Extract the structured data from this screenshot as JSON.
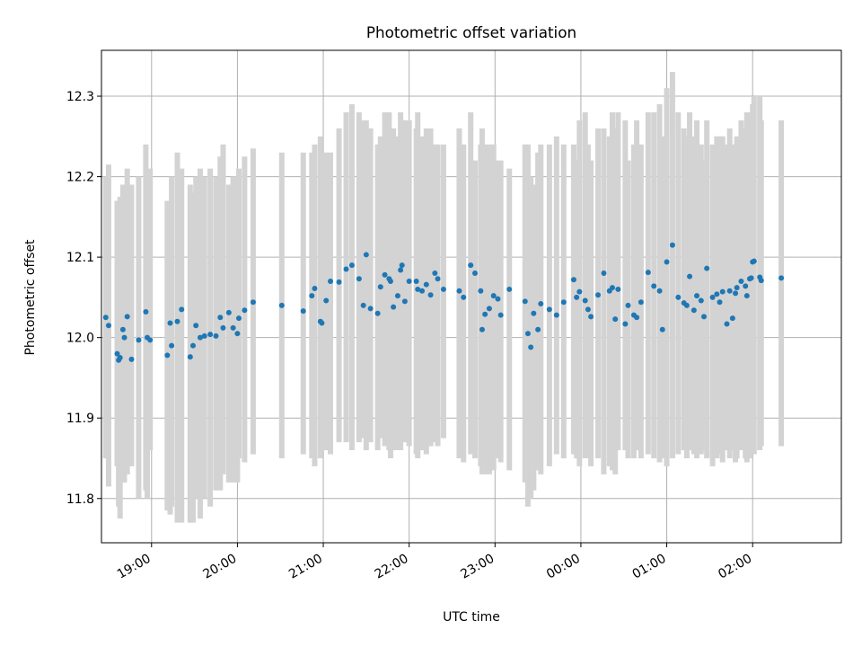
{
  "chart_data": {
    "type": "scatter",
    "title": "Photometric offset variation",
    "xlabel": "UTC time",
    "ylabel": "Photometric offset",
    "x_ticks": [
      "19:00",
      "20:00",
      "21:00",
      "22:00",
      "23:00",
      "00:00",
      "01:00",
      "02:00"
    ],
    "y_ticks": [
      "11.8",
      "11.9",
      "12.0",
      "12.1",
      "12.2",
      "12.3"
    ],
    "xlim": [
      "18:25",
      "03:02"
    ],
    "ylim": [
      11.745,
      12.357
    ],
    "grid": true,
    "colors": {
      "points": "#1f77b4",
      "errorbars": "#d3d3d3",
      "grid": "#b0b0b0"
    },
    "series": [
      {
        "x": [
          "18:28",
          "18:30",
          "18:36",
          "18:37",
          "18:38",
          "18:40",
          "18:41",
          "18:43",
          "18:46",
          "18:51",
          "18:56",
          "18:57",
          "18:59",
          "19:11",
          "19:13",
          "19:14",
          "19:18",
          "19:21",
          "19:27",
          "19:29",
          "19:31",
          "19:34",
          "19:37",
          "19:41",
          "19:45",
          "19:48",
          "19:50",
          "19:54",
          "19:57",
          "20:00",
          "20:01",
          "20:05",
          "20:11",
          "20:31",
          "20:46",
          "20:52",
          "20:54",
          "20:58",
          "20:59",
          "21:02",
          "21:05",
          "21:11",
          "21:16",
          "21:20",
          "21:25",
          "21:28",
          "21:30",
          "21:33",
          "21:38",
          "21:40",
          "21:43",
          "21:46",
          "21:47",
          "21:49",
          "21:52",
          "21:54",
          "21:55",
          "21:57",
          "22:00",
          "22:05",
          "22:06",
          "22:09",
          "22:12",
          "22:15",
          "22:18",
          "22:20",
          "22:24",
          "22:35",
          "22:38",
          "22:43",
          "22:46",
          "22:50",
          "22:51",
          "22:53",
          "22:56",
          "22:59",
          "23:02",
          "23:04",
          "23:10",
          "23:21",
          "23:23",
          "23:25",
          "23:27",
          "23:30",
          "23:32",
          "23:38",
          "23:43",
          "23:48",
          "23:55",
          "23:57",
          "23:59",
          "00:03",
          "00:05",
          "00:07",
          "00:12",
          "00:16",
          "00:20",
          "00:22",
          "00:24",
          "00:26",
          "00:31",
          "00:33",
          "00:37",
          "00:39",
          "00:42",
          "00:47",
          "00:51",
          "00:55",
          "00:57",
          "01:00",
          "01:04",
          "01:08",
          "01:12",
          "01:14",
          "01:16",
          "01:19",
          "01:21",
          "01:24",
          "01:26",
          "01:28",
          "01:32",
          "01:35",
          "01:37",
          "01:39",
          "01:42",
          "01:44",
          "01:46",
          "01:48",
          "01:49",
          "01:52",
          "01:55",
          "01:56",
          "01:58",
          "01:59",
          "02:00",
          "02:01",
          "02:05",
          "02:06",
          "02:20"
        ],
        "y": [
          12.025,
          12.015,
          11.98,
          11.972,
          11.975,
          12.01,
          12.0,
          12.026,
          11.973,
          11.997,
          12.032,
          12.0,
          11.997,
          11.978,
          12.018,
          11.99,
          12.02,
          12.035,
          11.976,
          11.99,
          12.015,
          12.0,
          12.002,
          12.004,
          12.002,
          12.025,
          12.012,
          12.031,
          12.012,
          12.005,
          12.024,
          12.034,
          12.044,
          12.04,
          12.033,
          12.052,
          12.061,
          12.02,
          12.018,
          12.046,
          12.07,
          12.069,
          12.085,
          12.09,
          12.073,
          12.04,
          12.103,
          12.036,
          12.03,
          12.063,
          12.078,
          12.073,
          12.07,
          12.038,
          12.052,
          12.084,
          12.09,
          12.045,
          12.07,
          12.07,
          12.06,
          12.058,
          12.066,
          12.053,
          12.08,
          12.073,
          12.06,
          12.058,
          12.05,
          12.09,
          12.08,
          12.058,
          12.01,
          12.029,
          12.036,
          12.052,
          12.048,
          12.028,
          12.06,
          12.045,
          12.005,
          11.988,
          12.03,
          12.01,
          12.042,
          12.035,
          12.028,
          12.044,
          12.072,
          12.05,
          12.057,
          12.046,
          12.035,
          12.026,
          12.053,
          12.08,
          12.058,
          12.062,
          12.023,
          12.06,
          12.017,
          12.04,
          12.028,
          12.025,
          12.044,
          12.081,
          12.064,
          12.058,
          12.01,
          12.094,
          12.115,
          12.05,
          12.043,
          12.04,
          12.076,
          12.034,
          12.052,
          12.046,
          12.026,
          12.086,
          12.05,
          12.054,
          12.044,
          12.057,
          12.017,
          12.058,
          12.024,
          12.055,
          12.062,
          12.07,
          12.064,
          12.052,
          12.073,
          12.074,
          12.094,
          12.095,
          12.075,
          12.071,
          12.074
        ],
        "err_low": [
          11.85,
          11.815,
          11.84,
          11.79,
          11.775,
          11.82,
          11.82,
          11.83,
          11.84,
          11.8,
          11.81,
          11.8,
          11.86,
          11.785,
          11.78,
          11.79,
          11.77,
          11.77,
          11.77,
          11.77,
          11.8,
          11.775,
          11.8,
          11.79,
          11.81,
          11.81,
          11.83,
          11.82,
          11.82,
          11.82,
          11.85,
          11.845,
          11.855,
          11.85,
          11.855,
          11.85,
          11.84,
          11.85,
          11.86,
          11.86,
          11.855,
          11.87,
          11.87,
          11.86,
          11.87,
          11.875,
          11.86,
          11.87,
          11.86,
          11.875,
          11.865,
          11.86,
          11.85,
          11.86,
          11.86,
          11.86,
          11.87,
          11.87,
          11.865,
          11.855,
          11.85,
          11.86,
          11.855,
          11.865,
          11.87,
          11.865,
          11.875,
          11.85,
          11.845,
          11.855,
          11.85,
          11.84,
          11.83,
          11.83,
          11.83,
          11.835,
          11.85,
          11.845,
          11.835,
          11.82,
          11.79,
          11.8,
          11.81,
          11.835,
          11.83,
          11.84,
          11.855,
          11.85,
          11.855,
          11.85,
          11.84,
          11.85,
          11.85,
          11.84,
          11.85,
          11.83,
          11.84,
          11.835,
          11.83,
          11.86,
          11.86,
          11.85,
          11.85,
          11.86,
          11.85,
          11.855,
          11.85,
          11.845,
          11.85,
          11.84,
          11.85,
          11.855,
          11.86,
          11.85,
          11.86,
          11.855,
          11.85,
          11.855,
          11.86,
          11.85,
          11.84,
          11.85,
          11.855,
          11.845,
          11.86,
          11.85,
          11.86,
          11.845,
          11.85,
          11.86,
          11.85,
          11.845,
          11.85,
          11.86,
          11.855,
          11.855,
          11.86,
          11.865,
          11.865
        ],
        "err_high": [
          12.2,
          12.215,
          12.17,
          12.16,
          12.175,
          12.19,
          12.18,
          12.21,
          12.19,
          12.2,
          12.24,
          12.2,
          12.21,
          12.17,
          12.16,
          12.2,
          12.23,
          12.21,
          12.19,
          12.18,
          12.2,
          12.21,
          12.2,
          12.21,
          12.2,
          12.225,
          12.24,
          12.19,
          12.2,
          12.2,
          12.21,
          12.225,
          12.235,
          12.23,
          12.23,
          12.23,
          12.24,
          12.25,
          12.23,
          12.23,
          12.23,
          12.26,
          12.28,
          12.29,
          12.28,
          12.27,
          12.27,
          12.26,
          12.24,
          12.25,
          12.28,
          12.28,
          12.24,
          12.26,
          12.25,
          12.28,
          12.27,
          12.27,
          12.27,
          12.26,
          12.28,
          12.25,
          12.26,
          12.26,
          12.24,
          12.24,
          12.24,
          12.26,
          12.24,
          12.28,
          12.22,
          12.24,
          12.26,
          12.24,
          12.24,
          12.24,
          12.22,
          12.22,
          12.21,
          12.24,
          12.24,
          12.2,
          12.19,
          12.23,
          12.24,
          12.24,
          12.25,
          12.24,
          12.24,
          12.22,
          12.27,
          12.28,
          12.24,
          12.22,
          12.26,
          12.26,
          12.25,
          12.28,
          12.26,
          12.28,
          12.27,
          12.22,
          12.24,
          12.27,
          12.24,
          12.28,
          12.28,
          12.29,
          12.25,
          12.31,
          12.33,
          12.28,
          12.26,
          12.25,
          12.28,
          12.25,
          12.27,
          12.24,
          12.22,
          12.27,
          12.24,
          12.25,
          12.25,
          12.25,
          12.24,
          12.26,
          12.24,
          12.24,
          12.25,
          12.27,
          12.26,
          12.28,
          12.27,
          12.28,
          12.29,
          12.3,
          12.3,
          12.27,
          12.27
        ]
      }
    ]
  }
}
